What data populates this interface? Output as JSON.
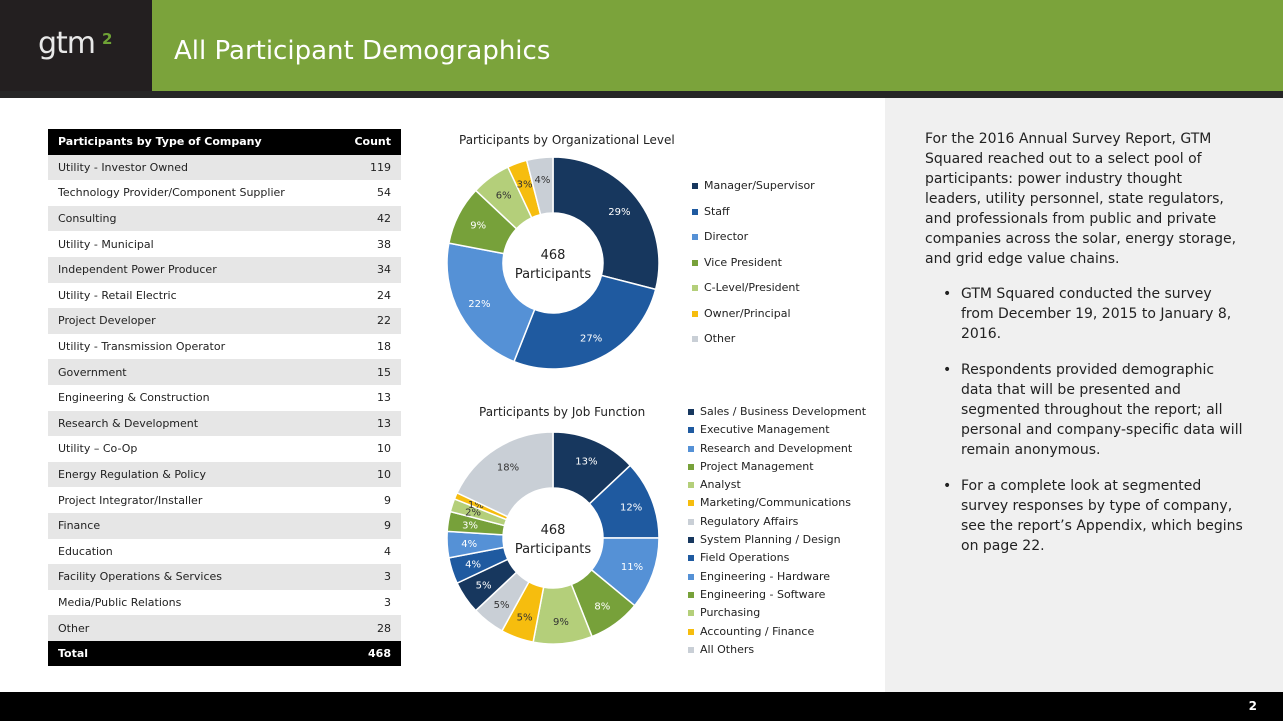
{
  "header": {
    "logo_text": "gtm",
    "logo_sup": "2",
    "title": "All Participant Demographics"
  },
  "company_table": {
    "headers": [
      "Participants by Type of Company",
      "Count"
    ],
    "rows": [
      {
        "label": "Utility - Investor Owned",
        "count": "119"
      },
      {
        "label": "Technology Provider/Component Supplier",
        "count": "54"
      },
      {
        "label": "Consulting",
        "count": "42"
      },
      {
        "label": "Utility - Municipal",
        "count": "38"
      },
      {
        "label": "Independent Power Producer",
        "count": "34"
      },
      {
        "label": "Utility - Retail Electric",
        "count": "24"
      },
      {
        "label": "Project Developer",
        "count": "22"
      },
      {
        "label": "Utility - Transmission Operator",
        "count": "18"
      },
      {
        "label": "Government",
        "count": "15"
      },
      {
        "label": "Engineering & Construction",
        "count": "13"
      },
      {
        "label": "Research & Development",
        "count": "13"
      },
      {
        "label": "Utility – Co-Op",
        "count": "10"
      },
      {
        "label": "Energy Regulation & Policy",
        "count": "10"
      },
      {
        "label": "Project Integrator/Installer",
        "count": "9"
      },
      {
        "label": "Finance",
        "count": "9"
      },
      {
        "label": "Education",
        "count": "4"
      },
      {
        "label": "Facility Operations & Services",
        "count": "3"
      },
      {
        "label": "Media/Public Relations",
        "count": "3"
      },
      {
        "label": "Other",
        "count": "28"
      }
    ],
    "total_label": "Total",
    "total_count": "468"
  },
  "chart_data": [
    {
      "type": "pie",
      "title": "Participants by Organizational Level",
      "center_label": [
        "468",
        "Participants"
      ],
      "categories": [
        "Manager/Supervisor",
        "Staff",
        "Director",
        "Vice President",
        "C-Level/President",
        "Owner/Principal",
        "Other"
      ],
      "values": [
        29,
        27,
        22,
        9,
        6,
        3,
        4
      ],
      "labels": [
        "29%",
        "27%",
        "22%",
        "9%",
        "6%",
        "3%",
        "4%"
      ],
      "colors": [
        "#17375e",
        "#1f5aa0",
        "#5591d6",
        "#77a13a",
        "#b4cf7a",
        "#f6bd0e",
        "#c9cfd6"
      ],
      "legend_position": "right"
    },
    {
      "type": "pie",
      "title": "Participants by Job Function",
      "center_label": [
        "468",
        "Participants"
      ],
      "categories": [
        "Sales / Business Development",
        "Executive Management",
        "Research and Development",
        "Project Management",
        "Analyst",
        "Marketing/Communications",
        "Regulatory Affairs",
        "System Planning / Design",
        "Field Operations",
        "Engineering - Hardware",
        "Engineering - Software",
        "Purchasing",
        "Accounting / Finance",
        "All Others"
      ],
      "values": [
        13,
        12,
        11,
        8,
        9,
        5,
        5,
        5,
        4,
        4,
        3,
        2,
        1,
        18
      ],
      "labels": [
        "13%",
        "12%",
        "11%",
        "8%",
        "9%",
        "5%",
        "5%",
        "5%",
        "4%",
        "4%",
        "3%",
        "2%",
        "1%",
        "18%"
      ],
      "legend_categories": [
        "Sales / Business Development",
        "Executive Management",
        "Research and Development",
        "Project Management",
        "Analyst",
        "Marketing/Communications",
        "Regulatory Affairs",
        "System Planning / Design",
        "Field Operations",
        "Engineering - Hardware",
        "Engineering - Software",
        "Purchasing",
        "Accounting / Finance",
        "All Others"
      ],
      "colors": [
        "#17375e",
        "#1f5aa0",
        "#5591d6",
        "#77a13a",
        "#b4cf7a",
        "#f6bd0e",
        "#c9cfd6",
        "#17375e",
        "#1f5aa0",
        "#5591d6",
        "#77a13a",
        "#b4cf7a",
        "#f6bd0e",
        "#c9cfd6"
      ],
      "legend_position": "right"
    }
  ],
  "side_panel": {
    "intro": "For the 2016 Annual Survey Report, GTM Squared reached out to a select pool of participants: power industry thought leaders, utility personnel, state regulators, and professionals from public and private companies across the solar, energy storage, and grid edge value chains.",
    "bullets": [
      "GTM Squared conducted the survey from December 19, 2015 to January 8, 2016.",
      "Respondents provided demographic data that will be presented and segmented throughout the report; all personal and company-specific data will remain anonymous.",
      "For a complete look at segmented survey responses by type of company, see the report’s Appendix, which begins on page 22."
    ]
  },
  "footer": {
    "page_number": "2"
  },
  "colors": {
    "brand_green": "#7ba33b",
    "dark": "#231f20"
  }
}
